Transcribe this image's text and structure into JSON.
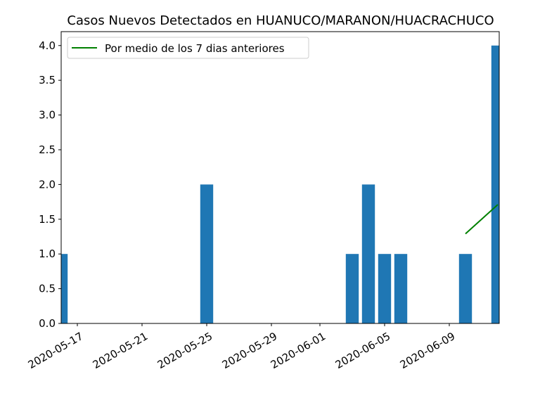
{
  "chart_data": {
    "type": "bar",
    "title": "Casos Nuevos Detectados en HUANUCO/MARANON/HUACRACHUCO",
    "xlabel": "",
    "ylabel": "",
    "x_range": [
      "2020-05-15",
      "2020-06-11"
    ],
    "ylim": [
      0,
      4.2
    ],
    "grid": false,
    "legend_position": "top-left",
    "x_ticks": [
      "2020-05-17",
      "2020-05-21",
      "2020-05-25",
      "2020-05-29",
      "2020-06-01",
      "2020-06-05",
      "2020-06-09"
    ],
    "y_ticks": [
      "0.0",
      "0.5",
      "1.0",
      "1.5",
      "2.0",
      "2.5",
      "3.0",
      "3.5",
      "4.0"
    ],
    "bars": {
      "color": "#1f77b4",
      "dates": [
        "2020-05-16",
        "2020-05-25",
        "2020-06-03",
        "2020-06-04",
        "2020-06-05",
        "2020-06-06",
        "2020-06-10",
        "2020-06-12"
      ],
      "values": [
        1,
        2,
        1,
        2,
        1,
        1,
        1,
        4
      ]
    },
    "series": [
      {
        "name": "Por medio de los 7 dias anteriores",
        "type": "line",
        "color": "#008000",
        "x": [
          "2020-06-10",
          "2020-06-12"
        ],
        "values": [
          1.29,
          1.71
        ]
      }
    ]
  }
}
